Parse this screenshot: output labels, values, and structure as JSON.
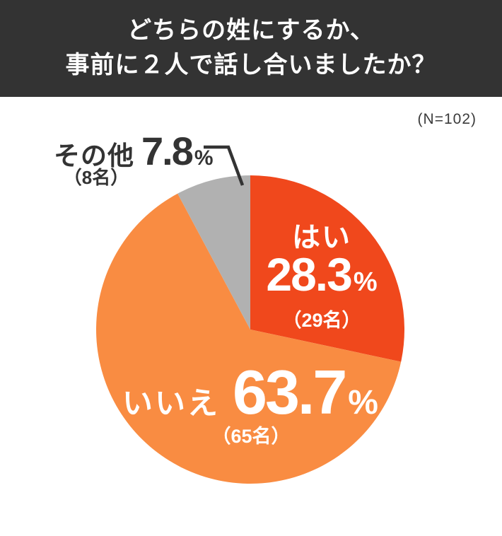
{
  "header": {
    "title_lines": [
      "どちらの姓にするか、",
      "事前に２人で話し合いましたか？"
    ]
  },
  "chart_data": {
    "type": "pie",
    "title": "どちらの姓にするか、事前に2人で話し合いましたか？",
    "n_label": "(N=102)",
    "total_n": 102,
    "direction": "clockwise",
    "start_angle": "12-oclock",
    "legend_position": "none",
    "percent_sign": "%",
    "slices": [
      {
        "label": "はい",
        "percent": 28.3,
        "percent_text": "28.3",
        "count": 29,
        "count_text": "（29名）",
        "color": "#F0481C",
        "text_color": "#FFFFFF",
        "label_placement": "inside"
      },
      {
        "label": "いいえ",
        "percent": 63.7,
        "percent_text": "63.7",
        "count": 65,
        "count_text": "（65名）",
        "color": "#F98C42",
        "text_color": "#FFFFFF",
        "label_placement": "inside"
      },
      {
        "label": "その他",
        "percent": 7.8,
        "percent_text": "7.8",
        "count": 8,
        "count_text": "（8名）",
        "color": "#B1B1B1",
        "text_color": "#333333",
        "label_placement": "outside-callout"
      }
    ]
  },
  "colors": {
    "header_bg": "#333333",
    "page_bg": "#FFFFFF",
    "leader_line": "#333333",
    "note_text": "#3B3B3B"
  }
}
